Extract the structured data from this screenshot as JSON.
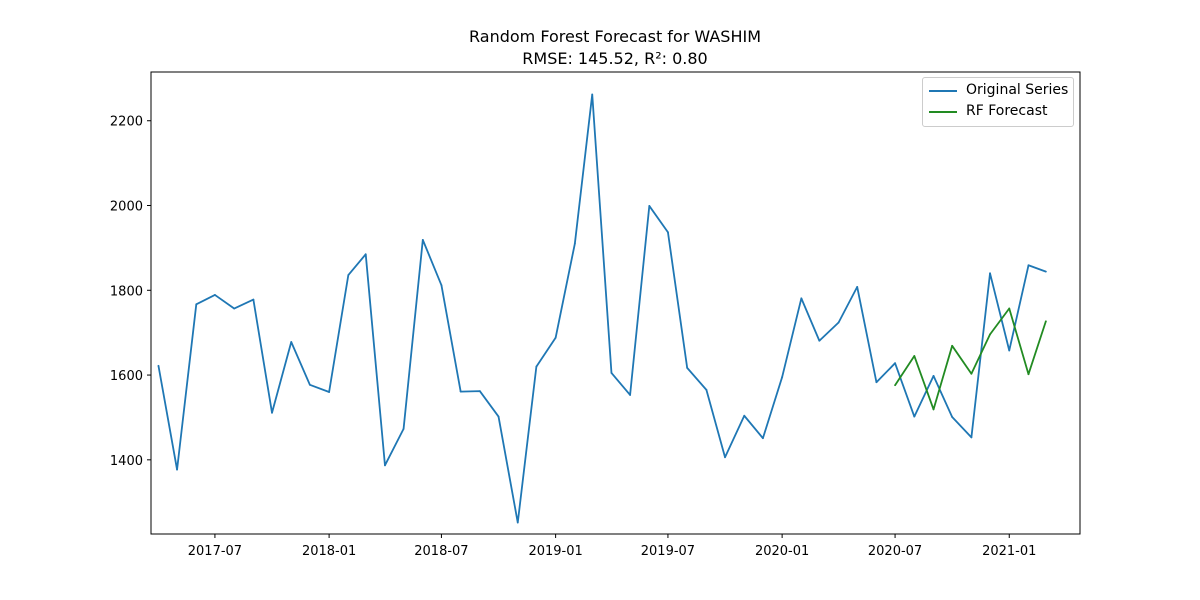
{
  "chart_data": {
    "type": "line",
    "title": "Random Forest Forecast for WASHIM",
    "subtitle": "RMSE: 145.52, R²: 0.80",
    "xlabel": "",
    "ylabel": "",
    "ylim": [
      1225,
      2315
    ],
    "xlim": [
      "2017-03-20",
      "2021-04-25"
    ],
    "x_ticks": [
      "2017-07",
      "2018-01",
      "2018-07",
      "2019-01",
      "2019-07",
      "2020-01",
      "2020-07",
      "2021-01"
    ],
    "y_ticks": [
      1400,
      1600,
      1800,
      2000,
      2200
    ],
    "grid": false,
    "legend_position": "top-right",
    "series": [
      {
        "name": "Original Series",
        "color": "#1f77b4",
        "x": [
          "2017-04",
          "2017-05",
          "2017-06",
          "2017-07",
          "2017-08",
          "2017-09",
          "2017-10",
          "2017-11",
          "2017-12",
          "2018-01",
          "2018-02",
          "2018-03",
          "2018-04",
          "2018-05",
          "2018-06",
          "2018-07",
          "2018-08",
          "2018-09",
          "2018-10",
          "2018-11",
          "2018-12",
          "2019-01",
          "2019-02",
          "2019-03",
          "2019-04",
          "2019-05",
          "2019-06",
          "2019-07",
          "2019-08",
          "2019-09",
          "2019-10",
          "2019-11",
          "2019-12",
          "2020-01",
          "2020-02",
          "2020-03",
          "2020-04",
          "2020-05",
          "2020-06",
          "2020-07",
          "2020-08",
          "2020-09",
          "2020-10",
          "2020-11",
          "2020-12",
          "2021-01",
          "2021-02",
          "2021-03"
        ],
        "y": [
          1622,
          1377,
          1767,
          1789,
          1757,
          1778,
          1511,
          1678,
          1577,
          1560,
          1836,
          1885,
          1387,
          1473,
          1919,
          1812,
          1561,
          1562,
          1502,
          1252,
          1620,
          1688,
          1910,
          2262,
          1605,
          1553,
          1999,
          1937,
          1617,
          1565,
          1406,
          1504,
          1451,
          1595,
          1781,
          1681,
          1724,
          1808,
          1583,
          1628,
          1502,
          1598,
          1501,
          1453,
          1840,
          1658,
          1859,
          1844
        ]
      },
      {
        "name": "RF Forecast",
        "color": "#228b22",
        "x": [
          "2020-07",
          "2020-08",
          "2020-09",
          "2020-10",
          "2020-11",
          "2020-12",
          "2021-01",
          "2021-02",
          "2021-03"
        ],
        "y": [
          1576,
          1645,
          1519,
          1669,
          1603,
          1696,
          1757,
          1602,
          1727
        ]
      }
    ]
  }
}
